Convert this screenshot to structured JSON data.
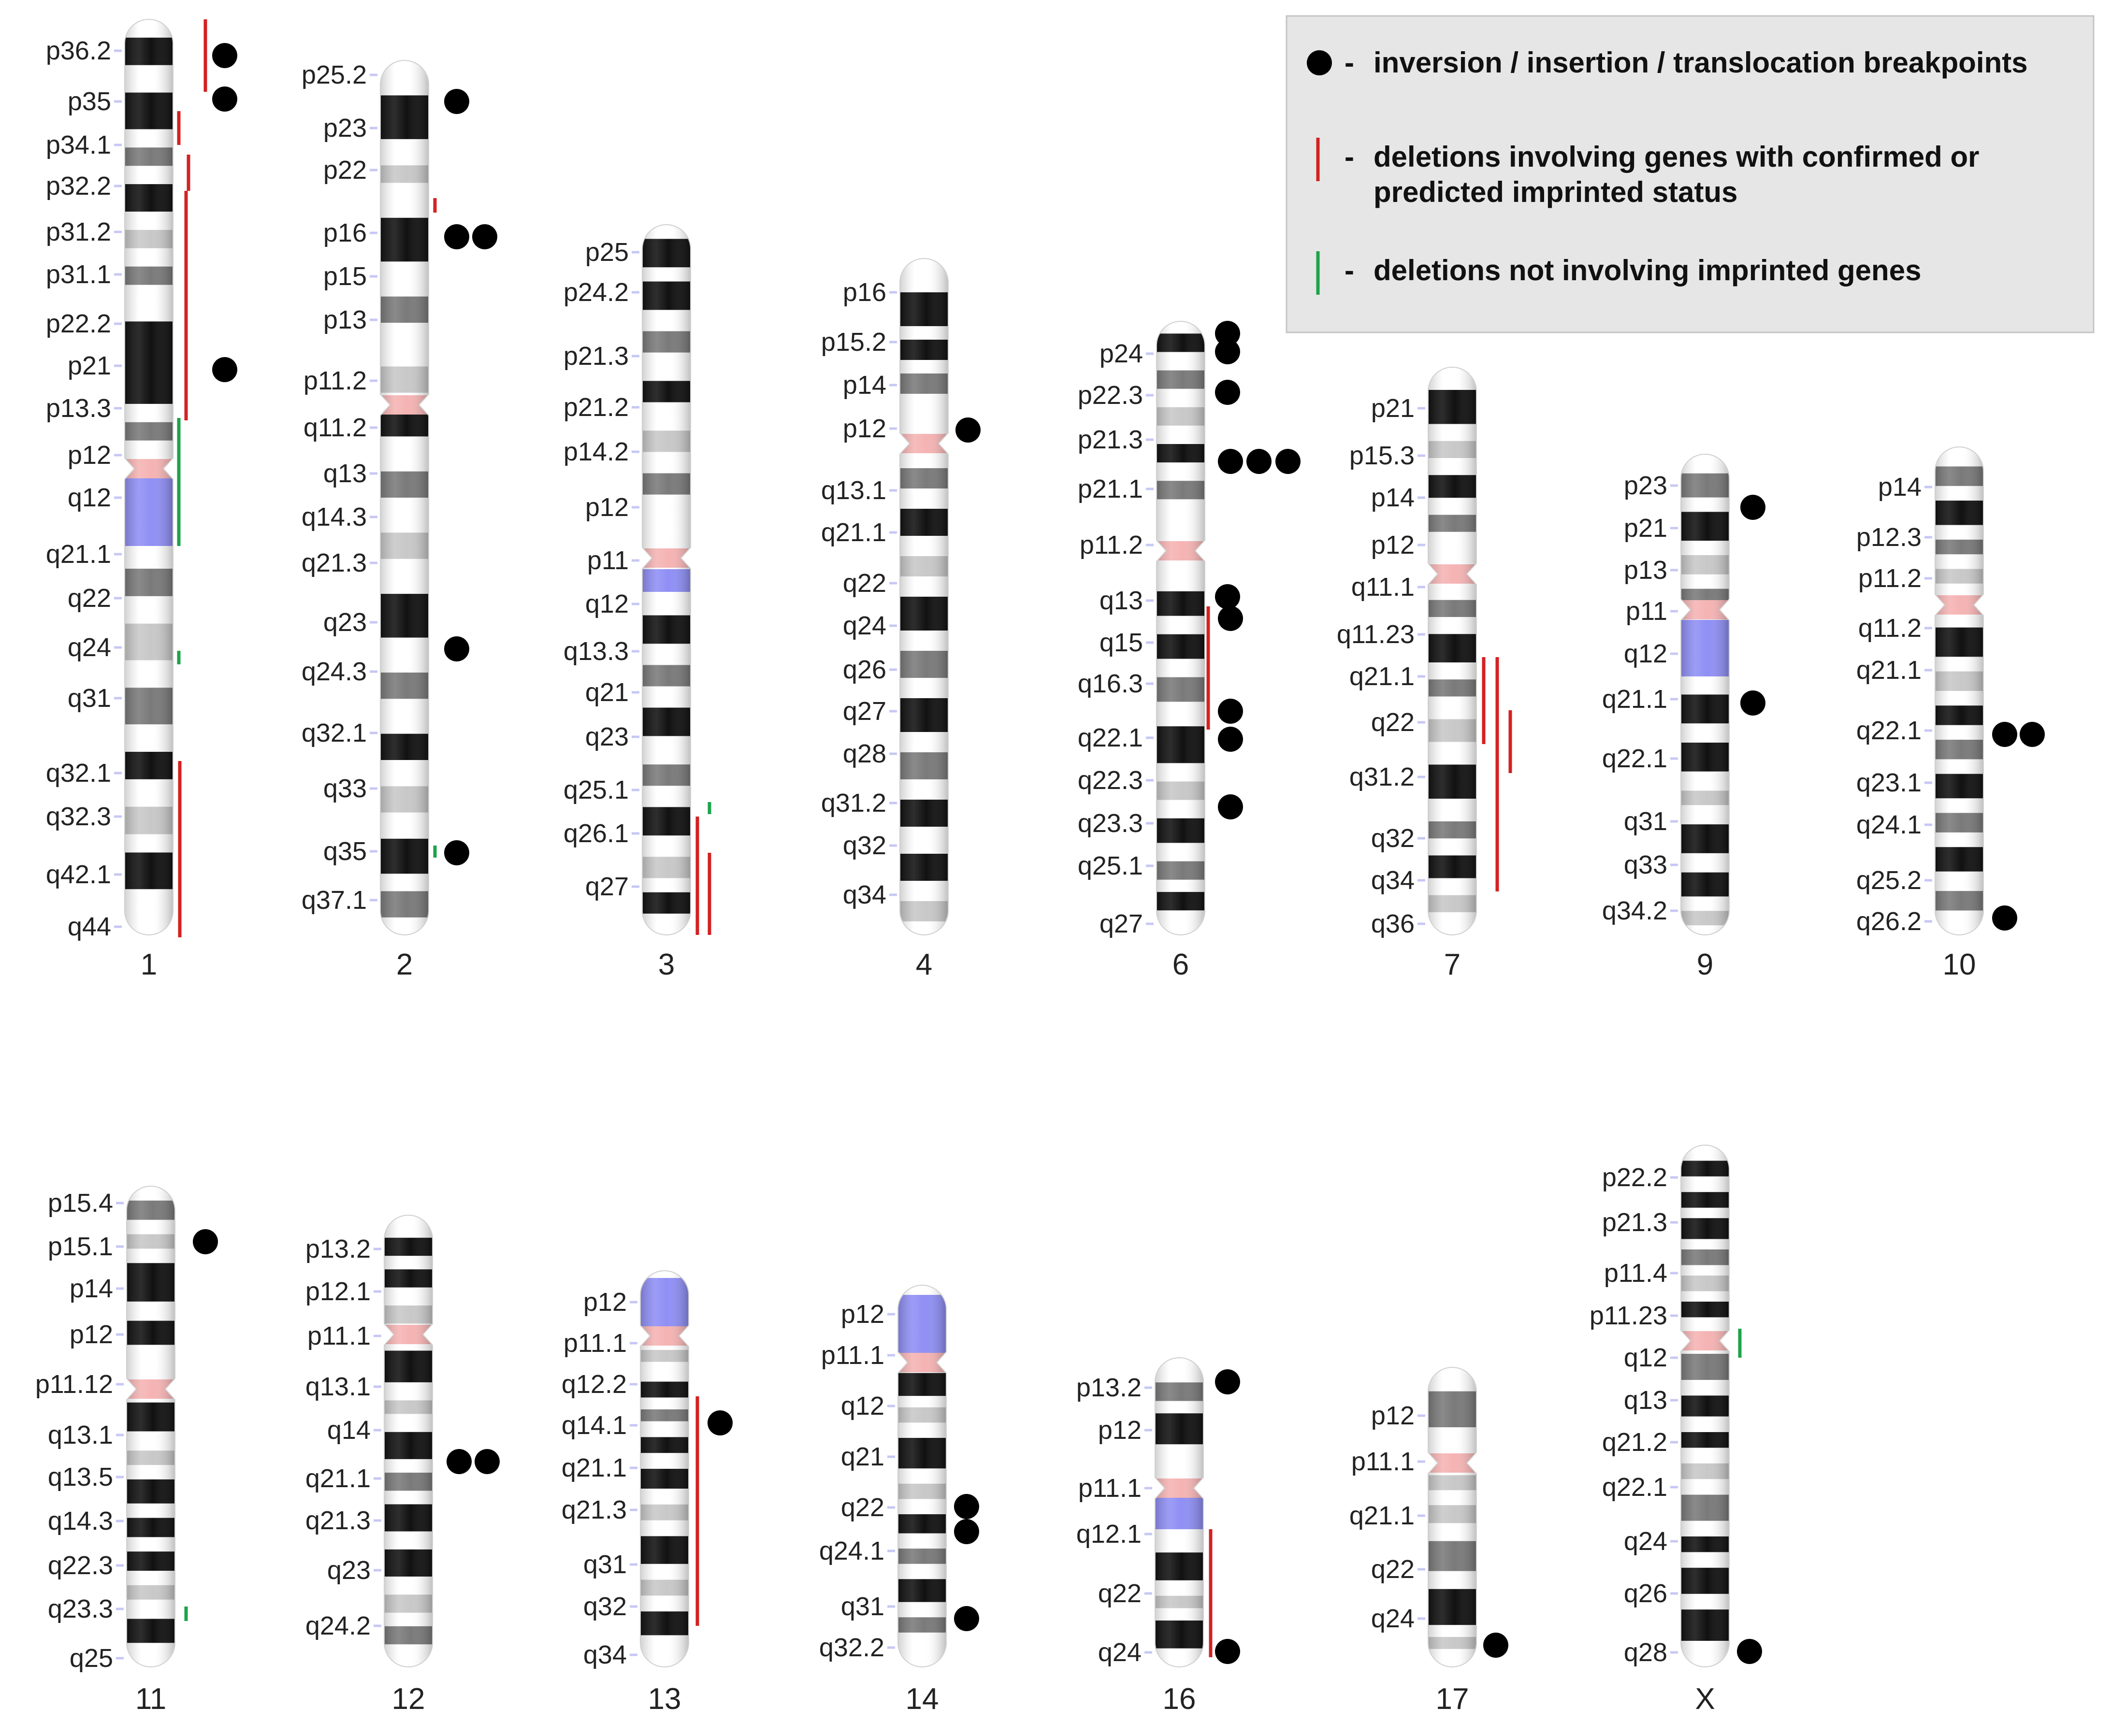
{
  "colors": {
    "band_black": "#111111",
    "band_gray": "#7a7a7a",
    "band_lightgray": "#c8c8c8",
    "centromere": "#f5b3b3",
    "heterochromatin": "#8f8ff5",
    "tick": "#c7c7f5",
    "deletion_imprinted": "#d32222",
    "deletion_nonimprinted": "#1ea34a",
    "breakpoint": "#000000",
    "legend_bg": "#e6e6e6"
  },
  "legend": {
    "breakpoint_label": "inversion / insertion / translocation breakpoints",
    "imprinted_label_line1": "deletions involving genes with confirmed or",
    "imprinted_label_line2": "predicted imprinted status",
    "nonimprinted_label": "deletions not involving imprinted genes",
    "dash": "-"
  },
  "chromosomes": [
    {
      "name": "1",
      "labels": [
        "p36.2",
        "p35",
        "p34.1",
        "p32.2",
        "p31.2",
        "p31.1",
        "p22.2",
        "p21",
        "p13.3",
        "p12",
        "q12",
        "q21.1",
        "q22",
        "q24",
        "q31",
        "q32.1",
        "q32.3",
        "q42.1",
        "q44"
      ],
      "breakpoints": 3,
      "red_deletions": 5,
      "green_deletions": 2
    },
    {
      "name": "2",
      "labels": [
        "p25.2",
        "p23",
        "p22",
        "p16",
        "p15",
        "p13",
        "p11.2",
        "q11.2",
        "q13",
        "q14.3",
        "q21.3",
        "q23",
        "q24.3",
        "q32.1",
        "q33",
        "q35",
        "q37.1"
      ],
      "breakpoints": 5,
      "red_deletions": 1,
      "green_deletions": 1
    },
    {
      "name": "3",
      "labels": [
        "p25",
        "p24.2",
        "p21.3",
        "p21.2",
        "p14.2",
        "p12",
        "p11",
        "q12",
        "q13.3",
        "q21",
        "q23",
        "q25.1",
        "q26.1",
        "q27"
      ],
      "breakpoints": 0,
      "red_deletions": 2,
      "green_deletions": 1
    },
    {
      "name": "4",
      "labels": [
        "p16",
        "p15.2",
        "p14",
        "p12",
        "q13.1",
        "q21.1",
        "q22",
        "q24",
        "q26",
        "q27",
        "q28",
        "q31.2",
        "q32",
        "q34"
      ],
      "breakpoints": 1,
      "red_deletions": 0,
      "green_deletions": 0
    },
    {
      "name": "6",
      "labels": [
        "p24",
        "p22.3",
        "p21.3",
        "p21.1",
        "p11.2",
        "q13",
        "q15",
        "q16.3",
        "q22.1",
        "q22.3",
        "q23.3",
        "q25.1",
        "q27"
      ],
      "breakpoints": 11,
      "red_deletions": 1,
      "green_deletions": 0
    },
    {
      "name": "7",
      "labels": [
        "p21",
        "p15.3",
        "p14",
        "p12",
        "q11.1",
        "q11.23",
        "q21.1",
        "q22",
        "q31.2",
        "q32",
        "q34",
        "q36"
      ],
      "breakpoints": 0,
      "red_deletions": 3,
      "green_deletions": 0
    },
    {
      "name": "9",
      "labels": [
        "p23",
        "p21",
        "p13",
        "p11",
        "q12",
        "q21.1",
        "q22.1",
        "q31",
        "q33",
        "q34.2"
      ],
      "breakpoints": 2,
      "red_deletions": 0,
      "green_deletions": 0
    },
    {
      "name": "10",
      "labels": [
        "p14",
        "p12.3",
        "p11.2",
        "q11.2",
        "q21.1",
        "q22.1",
        "q23.1",
        "q24.1",
        "q25.2",
        "q26.2"
      ],
      "breakpoints": 3,
      "red_deletions": 0,
      "green_deletions": 0
    },
    {
      "name": "11",
      "labels": [
        "p15.4",
        "p15.1",
        "p14",
        "p12",
        "p11.12",
        "q13.1",
        "q13.5",
        "q14.3",
        "q22.3",
        "q23.3",
        "q25"
      ],
      "breakpoints": 1,
      "red_deletions": 0,
      "green_deletions": 1
    },
    {
      "name": "12",
      "labels": [
        "p13.2",
        "p12.1",
        "p11.1",
        "q13.1",
        "q14",
        "q21.1",
        "q21.3",
        "q23",
        "q24.2"
      ],
      "breakpoints": 2,
      "red_deletions": 0,
      "green_deletions": 0
    },
    {
      "name": "13",
      "labels": [
        "p12",
        "p11.1",
        "q12.2",
        "q14.1",
        "q21.1",
        "q21.3",
        "q31",
        "q32",
        "q34"
      ],
      "breakpoints": 1,
      "red_deletions": 1,
      "green_deletions": 0
    },
    {
      "name": "14",
      "labels": [
        "p12",
        "p11.1",
        "q12",
        "q21",
        "q22",
        "q24.1",
        "q31",
        "q32.2"
      ],
      "breakpoints": 3,
      "red_deletions": 0,
      "green_deletions": 0
    },
    {
      "name": "16",
      "labels": [
        "p13.2",
        "p12",
        "p11.1",
        "q12.1",
        "q22",
        "q24"
      ],
      "breakpoints": 2,
      "red_deletions": 1,
      "green_deletions": 0
    },
    {
      "name": "17",
      "labels": [
        "p12",
        "p11.1",
        "q21.1",
        "q22",
        "q24"
      ],
      "breakpoints": 1,
      "red_deletions": 0,
      "green_deletions": 0
    },
    {
      "name": "X",
      "labels": [
        "p22.2",
        "p21.3",
        "p11.4",
        "p11.23",
        "q12",
        "q13",
        "q21.2",
        "q22.1",
        "q24",
        "q26",
        "q28"
      ],
      "breakpoints": 1,
      "red_deletions": 0,
      "green_deletions": 1
    }
  ]
}
